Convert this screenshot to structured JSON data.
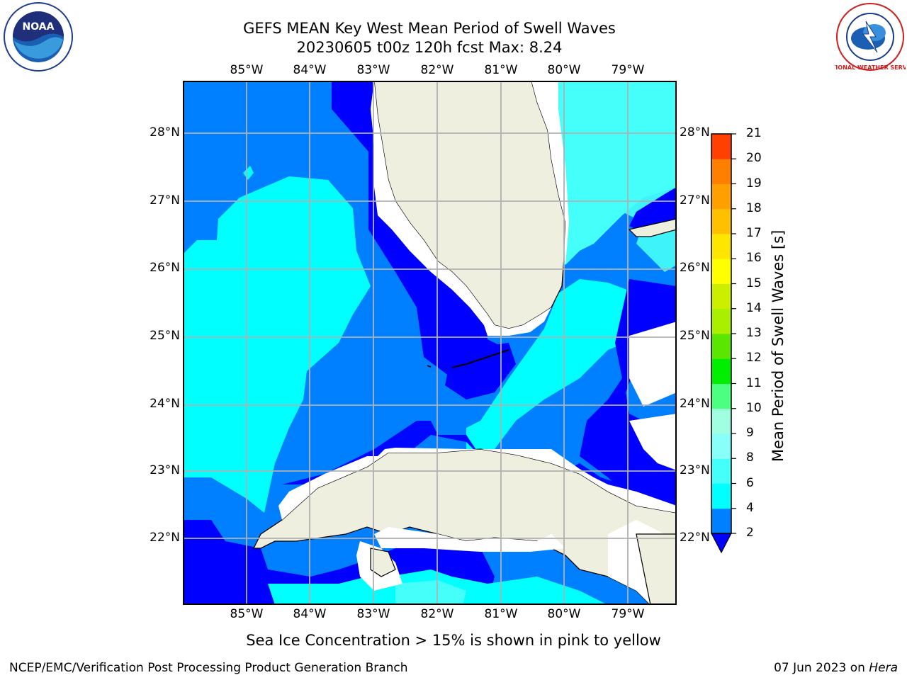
{
  "header": {
    "title_line1": "GEFS MEAN Key West Mean Period of Swell Waves",
    "title_line2": "20230605 t00z 120h fcst   Max: 8.24"
  },
  "map": {
    "longitude_labels": [
      "85°W",
      "84°W",
      "83°W",
      "82°W",
      "81°W",
      "80°W",
      "79°W"
    ],
    "latitude_labels": [
      "28°N",
      "27°N",
      "26°N",
      "25°N",
      "24°N",
      "23°N",
      "22°N"
    ],
    "colors": {
      "level_2_4": "#0080ff",
      "level_0_2": "#0000ff",
      "level_4_6": "#00ffff",
      "level_6_8": "#45fffa",
      "land": "#efefdf",
      "grid": "#b0b0b0",
      "coast": "#000000"
    }
  },
  "colorbar": {
    "label": "Mean Period of Swell Waves [s]",
    "ticks": [
      "2",
      "4",
      "6",
      "8",
      "9",
      "10",
      "11",
      "12",
      "13",
      "14",
      "15",
      "16",
      "17",
      "18",
      "19",
      "20",
      "21"
    ],
    "colors": [
      "#0080ff",
      "#00ffff",
      "#45fffa",
      "#88fff8",
      "#a0ffe0",
      "#4cff80",
      "#00ee00",
      "#5ae600",
      "#aaee00",
      "#ccef00",
      "#ffff00",
      "#ffe600",
      "#ffc000",
      "#ffa000",
      "#ff8000",
      "#ff4000",
      "#ff1000"
    ],
    "extend_color": "#0000ff"
  },
  "caption": "Sea Ice Concentration > 15% is shown in pink to yellow",
  "footer": {
    "left": "NCEP/EMC/Verification Post Processing Product Generation Branch",
    "right_prefix": "07 Jun 2023 on ",
    "right_italic": "Hera"
  },
  "logos": {
    "noaa_text": "NOAA",
    "nws_text": "NATIONAL WEATHER SERVICE"
  }
}
